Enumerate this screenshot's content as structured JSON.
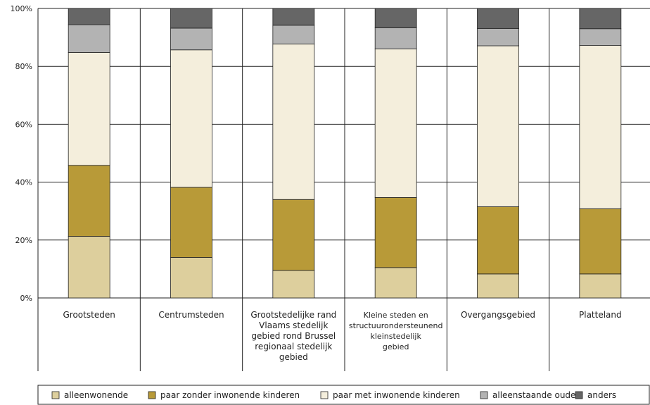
{
  "chart_data": {
    "type": "bar",
    "stacked": true,
    "ylim": [
      0,
      100
    ],
    "yticks": [
      "0%",
      "20%",
      "40%",
      "60%",
      "80%",
      "100%"
    ],
    "ytick_values": [
      0,
      20,
      40,
      60,
      80,
      100
    ],
    "categories": [
      "Grootsteden",
      "Centrumsteden",
      "Grootstedelijke rand Vlaams stedelijk gebied rond Brussel regionaal stedelijk gebied",
      "Kleine steden en structuurondersteunend kleinstedelijk gebied",
      "Overgangsgebied",
      "Platteland"
    ],
    "category_lines": [
      [
        "Grootsteden"
      ],
      [
        "Centrumsteden"
      ],
      [
        "Grootstedelijke rand",
        "Vlaams stedelijk",
        "gebied rond Brussel",
        "regionaal stedelijk",
        "gebied"
      ],
      [
        "Kleine steden en",
        "structuurondersteunend",
        "kleinstedelijk",
        "gebied"
      ],
      [
        "Overgangsgebied"
      ],
      [
        "Platteland"
      ]
    ],
    "series": [
      {
        "name": "alleenwonende",
        "color": "#ddcf9d",
        "values": [
          21.3,
          14.0,
          9.5,
          10.5,
          8.3,
          8.3
        ]
      },
      {
        "name": "paar zonder inwonende kinderen",
        "color": "#b89a38",
        "values": [
          24.5,
          24.2,
          24.5,
          24.2,
          23.2,
          22.5
        ]
      },
      {
        "name": "paar met inwonende kinderen",
        "color": "#f4eedc",
        "values": [
          39.0,
          47.5,
          53.7,
          51.3,
          55.6,
          56.4
        ]
      },
      {
        "name": "alleenstaande ouder",
        "color": "#b3b3b3",
        "values": [
          9.6,
          7.5,
          6.5,
          7.3,
          6.0,
          5.8
        ]
      },
      {
        "name": "anders",
        "color": "#666666",
        "values": [
          5.6,
          6.8,
          5.8,
          6.7,
          6.9,
          7.0
        ]
      }
    ],
    "legend_position": "bottom",
    "grid": true
  }
}
